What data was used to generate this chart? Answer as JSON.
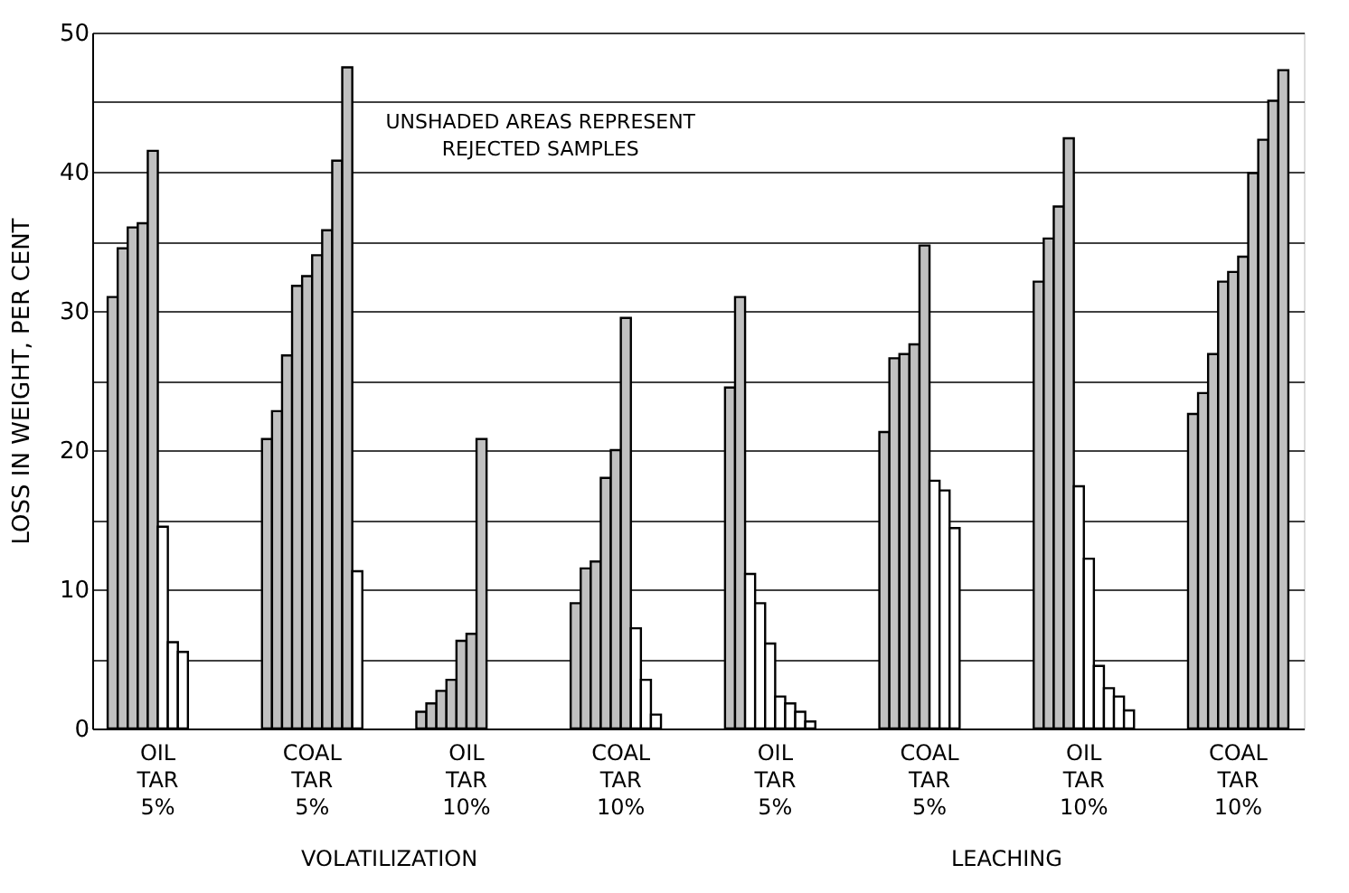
{
  "chart_data": {
    "type": "bar",
    "ylabel": "LOSS IN WEIGHT, PER CENT",
    "annotations": [
      "UNSHADED AREAS REPRESENT REJECTED SAMPLES",
      "VOLATILIZATION",
      "LEACHING"
    ],
    "categories": [
      "OIL TAR 5%",
      "COAL TAR 5%",
      "OIL TAR 10%",
      "COAL TAR 10%",
      "OIL TAR 5%",
      "COAL TAR 5%",
      "OIL TAR 10%",
      "COAL TAR 10%"
    ],
    "ylim": [
      0,
      50
    ],
    "yticks": [
      0,
      {
        "value": 5,
        "label": null
      },
      10,
      {
        "value": 15,
        "label": null
      },
      20,
      {
        "value": 25,
        "label": null
      },
      30,
      {
        "value": 35,
        "label": null
      },
      40,
      {
        "value": 45,
        "label": null
      },
      50
    ],
    "grid": "y",
    "legend": false,
    "series": [
      {
        "values": [
          31,
          20.8,
          1.2,
          9,
          24.5,
          21.3,
          32.1,
          22.6
        ],
        "colors": [
          "#c0c0c0",
          "#c0c0c0",
          "#c0c0c0",
          "#c0c0c0",
          "#c0c0c0",
          "#c0c0c0",
          "#c0c0c0",
          "#c0c0c0"
        ]
      },
      {
        "values": [
          34.5,
          22.8,
          1.8,
          11.5,
          31,
          26.6,
          35.2,
          24.1
        ],
        "colors": [
          "#c0c0c0",
          "#c0c0c0",
          "#c0c0c0",
          "#c0c0c0",
          "#c0c0c0",
          "#c0c0c0",
          "#c0c0c0",
          "#c0c0c0"
        ]
      },
      {
        "values": [
          36,
          26.8,
          2.7,
          12,
          11.1,
          26.9,
          37.5,
          26.9
        ],
        "colors": [
          "#c0c0c0",
          "#c0c0c0",
          "#c0c0c0",
          "#c0c0c0",
          "#ffffff",
          "#c0c0c0",
          "#c0c0c0",
          "#c0c0c0"
        ]
      },
      {
        "values": [
          36.3,
          31.8,
          3.5,
          18,
          9,
          27.6,
          42.4,
          32.1
        ],
        "colors": [
          "#c0c0c0",
          "#c0c0c0",
          "#c0c0c0",
          "#c0c0c0",
          "#ffffff",
          "#c0c0c0",
          "#c0c0c0",
          "#c0c0c0"
        ]
      },
      {
        "values": [
          41.5,
          32.5,
          6.3,
          20,
          6.1,
          34.7,
          17.4,
          32.8
        ],
        "colors": [
          "#c0c0c0",
          "#c0c0c0",
          "#c0c0c0",
          "#c0c0c0",
          "#ffffff",
          "#c0c0c0",
          "#ffffff",
          "#c0c0c0"
        ]
      },
      {
        "values": [
          14.5,
          34,
          6.8,
          29.5,
          2.3,
          17.8,
          12.2,
          33.9
        ],
        "colors": [
          "#ffffff",
          "#c0c0c0",
          "#c0c0c0",
          "#c0c0c0",
          "#ffffff",
          "#ffffff",
          "#ffffff",
          "#c0c0c0"
        ]
      },
      {
        "values": [
          6.2,
          35.8,
          20.8,
          7.2,
          1.8,
          17.1,
          4.5,
          39.9
        ],
        "colors": [
          "#ffffff",
          "#c0c0c0",
          "#c0c0c0",
          "#ffffff",
          "#ffffff",
          "#ffffff",
          "#ffffff",
          "#c0c0c0"
        ]
      },
      {
        "values": [
          5.5,
          40.8,
          null,
          3.5,
          1.2,
          14.4,
          2.9,
          42.3
        ],
        "colors": [
          "#ffffff",
          "#c0c0c0",
          null,
          "#ffffff",
          "#ffffff",
          "#ffffff",
          "#ffffff",
          "#c0c0c0"
        ]
      },
      {
        "values": [
          null,
          47.5,
          null,
          1,
          0.5,
          null,
          2.3,
          45.1
        ],
        "colors": [
          null,
          "#c0c0c0",
          null,
          "#ffffff",
          "#ffffff",
          null,
          "#ffffff",
          "#c0c0c0"
        ]
      },
      {
        "values": [
          null,
          11.3,
          null,
          null,
          null,
          null,
          1.3,
          47.3
        ],
        "colors": [
          null,
          "#ffffff",
          null,
          null,
          null,
          null,
          "#ffffff",
          "#c0c0c0"
        ]
      }
    ]
  }
}
